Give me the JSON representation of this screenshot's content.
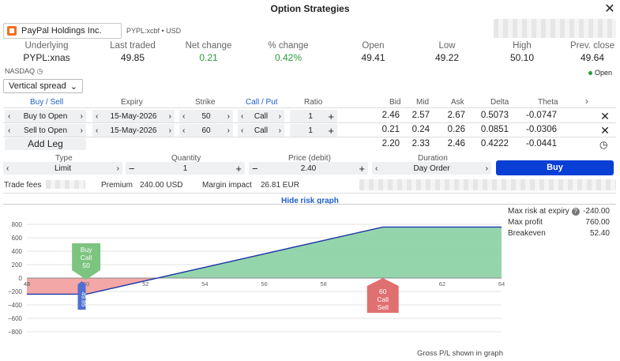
{
  "window": {
    "title": "Option Strategies",
    "close_label": "✕"
  },
  "symbol": {
    "name": "PayPal Holdings Inc.",
    "code": "PYPL:xcbf • USD"
  },
  "stats": {
    "headers": [
      "Underlying",
      "Last traded",
      "Net change",
      "% change",
      "Open",
      "Low",
      "High",
      "Prev. close"
    ],
    "values": [
      "PYPL:xnas",
      "49.85",
      "0.21",
      "0.42%",
      "49.41",
      "49.22",
      "50.10",
      "49.64"
    ]
  },
  "exchange": "NASDAQ",
  "market_status": "Open",
  "strategy_select": "Vertical spread",
  "legs_header": {
    "buy_sell": "Buy / Sell",
    "expiry": "Expiry",
    "strike": "Strike",
    "call_put": "Call / Put",
    "ratio": "Ratio",
    "bid": "Bid",
    "mid": "Mid",
    "ask": "Ask",
    "delta": "Delta",
    "theta": "Theta",
    "more": "›"
  },
  "legs": [
    {
      "action": "Buy to Open",
      "expiry": "15-May-2026",
      "strike": "50",
      "type": "Call",
      "ratio": "1",
      "bid": "2.46",
      "mid": "2.57",
      "ask": "2.67",
      "delta": "0.5073",
      "theta": "-0.0747"
    },
    {
      "action": "Sell to Open",
      "expiry": "15-May-2026",
      "strike": "60",
      "type": "Call",
      "ratio": "1",
      "bid": "0.21",
      "mid": "0.24",
      "ask": "0.26",
      "delta": "0.0851",
      "theta": "-0.0306"
    }
  ],
  "totals": {
    "add_leg": "Add Leg",
    "bid": "2.20",
    "mid": "2.33",
    "ask": "2.46",
    "delta": "0.4222",
    "theta": "-0.0441"
  },
  "order": {
    "type_label": "Type",
    "type_value": "Limit",
    "quantity_label": "Quantity",
    "quantity_value": "1",
    "price_label": "Price (debit)",
    "price_value": "2.40",
    "duration_label": "Duration",
    "duration_value": "Day Order",
    "buy_label": "Buy"
  },
  "fees": {
    "trade_fees_label": "Trade fees",
    "premium_label": "Premium",
    "premium_value": "240.00 USD",
    "margin_label": "Margin impact",
    "margin_value": "26.81 EUR"
  },
  "risk_toggle": "Hide risk graph",
  "summary": {
    "max_risk_label": "Max risk at expiry",
    "max_risk_value": "-240.00",
    "max_profit_label": "Max profit",
    "max_profit_value": "760.00",
    "breakeven_label": "Breakeven",
    "breakeven_value": "52.40"
  },
  "footnote": "Gross P/L shown in graph",
  "colors": {
    "profit": "#8fd3a8",
    "loss": "#f2a2a2",
    "line": "#1f3aa8",
    "buy_button": "#0a3fd6",
    "buy_marker": "#7cc47f",
    "sell_marker": "#e07070",
    "price_marker": "#4f6fd1"
  },
  "chart_data": {
    "type": "line",
    "x": [
      48,
      50,
      60,
      64
    ],
    "y": [
      -240,
      -240,
      760,
      760
    ],
    "xlim": [
      48,
      64
    ],
    "ylim": [
      -800,
      800
    ],
    "x_ticks": [
      "48",
      "48",
      "50",
      "52",
      "54",
      "56",
      "58",
      "60",
      "62",
      "64"
    ],
    "y_ticks": [
      "800",
      "600",
      "400",
      "200",
      "0",
      "−200",
      "−400",
      "−600",
      "−800"
    ],
    "markers": [
      {
        "label": "Buy\nCall\n50",
        "x": 50,
        "kind": "buy"
      },
      {
        "label": "60\nCall\nSell",
        "x": 60,
        "kind": "sell"
      },
      {
        "label": "49.85",
        "x": 49.85,
        "kind": "price"
      }
    ]
  }
}
